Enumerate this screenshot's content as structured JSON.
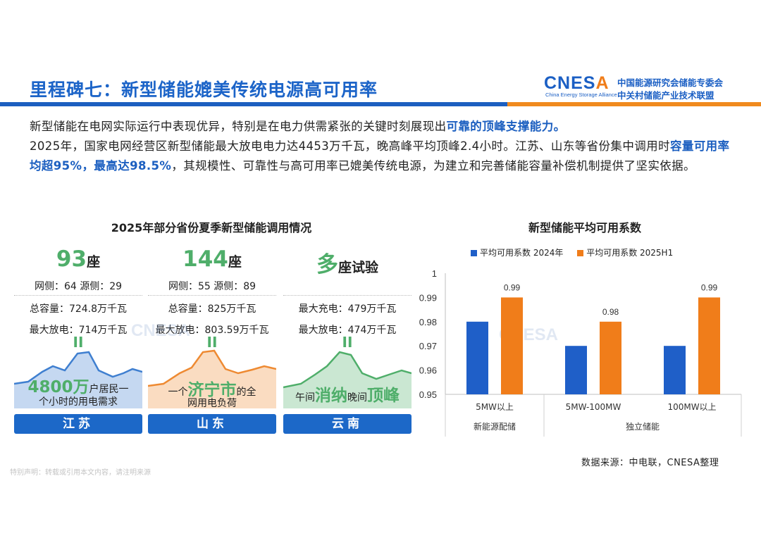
{
  "header": {
    "title": "里程碑七：新型储能媲美传统电源高可用率",
    "logo_word_a": "CNES",
    "logo_word_b": "A",
    "logo_sub": "China Energy Storage Alliance",
    "logo_cn_line1": "中国能源研究会储能专委会",
    "logo_cn_line2": "中关村储能产业技术联盟"
  },
  "intro": {
    "p1": "新型储能在电网实际运行中表现优异，特别是在电力供需紧张的关键时刻展现出",
    "p1_hl": "可靠的顶峰支撑能力。",
    "p2a": "2025年，国家电网经营区新型储能最大放电电力达4453万千瓦，晚高峰平均顶峰2.4小时。江苏、山东等省份集中调用时",
    "p2_hl": "容量可用率均超95%，最高达98.5%",
    "p2b": "，其规模性、可靠性与高可用率已媲美传统电源，为建立和完善储能容量补偿机制提供了坚实依据。"
  },
  "left_title": "2025年部分省份夏季新型储能调用情况",
  "provinces": [
    {
      "big_num": "93",
      "big_unit": "座",
      "sides": "网侧：64   源侧：29",
      "stat1": "总容量：724.8万千瓦",
      "stat2": "最大放电：714万千瓦",
      "eq": "II",
      "cap_big": "4800万",
      "cap_a": "户居民一",
      "cap_b": "个小时的用电需求",
      "name": "江苏",
      "wave_color": "#3f7fd0"
    },
    {
      "big_num": "144",
      "big_unit": "座",
      "sides": "网侧：55   源侧：89",
      "stat1": "总容量：825万千瓦",
      "stat2": "最大放电：803.59万千瓦",
      "eq": "II",
      "cap_pre": "一个",
      "cap_big": "济宁市",
      "cap_a": "的全",
      "cap_b": "网用电负荷",
      "name": "山东",
      "wave_color": "#ee8a32"
    },
    {
      "big_num": "多",
      "big_unit": "座试验",
      "stat1": "最大充电：479万千瓦",
      "stat2": "最大放电：474万千瓦",
      "eq": "II",
      "cap_pre": "午间",
      "cap_big": "消纳",
      "cap_a": "晚间",
      "cap_big2": "顶峰",
      "name": "云南",
      "wave_color": "#4fae6a"
    }
  ],
  "right_title": "新型储能平均可用系数",
  "chart_data": {
    "type": "bar",
    "title": "新型储能平均可用系数",
    "categories": [
      "5MW以上",
      "5MW-100MW",
      "100MW以上"
    ],
    "groups": [
      {
        "label": "新能源配储",
        "categories": [
          "5MW以上"
        ]
      },
      {
        "label": "独立储能",
        "categories": [
          "5MW-100MW",
          "100MW以上"
        ]
      }
    ],
    "series": [
      {
        "name": "平均可用系数 2024年",
        "values": [
          0.98,
          0.97,
          0.97
        ],
        "color": "#1f5fc8",
        "labels": [
          "",
          "",
          ""
        ]
      },
      {
        "name": "平均可用系数 2025H1",
        "values": [
          0.99,
          0.98,
          0.99
        ],
        "color": "#f07d1a",
        "labels": [
          "0.99",
          "0.98",
          "0.99"
        ]
      }
    ],
    "yticks": [
      "0.95",
      "0.96",
      "0.97",
      "0.98",
      "0.99",
      "1"
    ],
    "ylim": [
      0.95,
      1.0
    ],
    "legend_position": "top",
    "grid": false
  },
  "footer": {
    "source": "数据来源：中电联，CNESA整理",
    "notice": "特别声明：转载或引用本文内容，请注明来源"
  }
}
